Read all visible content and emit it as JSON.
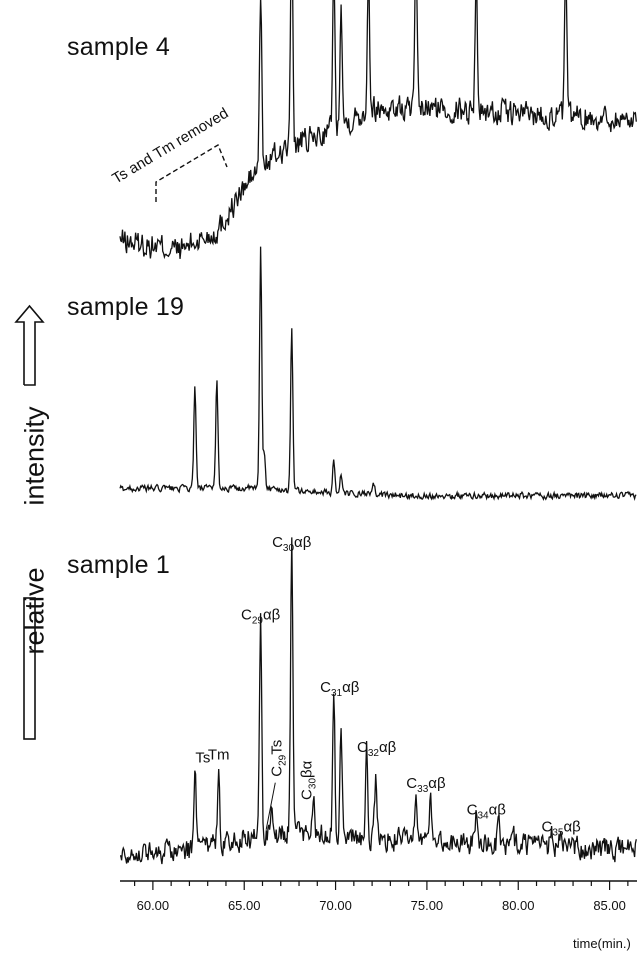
{
  "chart_data": {
    "type": "line",
    "xlabel": "time(min.)",
    "xlim": [
      58.2,
      86.5
    ],
    "xticks": [
      "60.00",
      "65.00",
      "70.00",
      "75.00",
      "80.00",
      "85.00"
    ],
    "ylabel_parts": [
      "relative",
      "intensity"
    ],
    "panels": [
      {
        "name": "sample 4",
        "annotation": "Ts and Tm removed",
        "baseline": [
          [
            58.2,
            0.04
          ],
          [
            61.5,
            0.0
          ],
          [
            63.5,
            0.08
          ],
          [
            65.5,
            0.32
          ],
          [
            67.0,
            0.42
          ],
          [
            69.0,
            0.48
          ],
          [
            72.0,
            0.6
          ],
          [
            75.0,
            0.6
          ],
          [
            80.0,
            0.58
          ],
          [
            86.5,
            0.55
          ]
        ],
        "peaks": [
          [
            65.9,
            0.75
          ],
          [
            67.6,
            1.0
          ],
          [
            69.9,
            0.7
          ],
          [
            70.3,
            0.55
          ],
          [
            71.8,
            0.62
          ],
          [
            74.4,
            0.62
          ],
          [
            77.7,
            0.6
          ],
          [
            82.6,
            0.6
          ]
        ],
        "noise": 0.05
      },
      {
        "name": "sample 19",
        "baseline": [
          [
            58.2,
            0.04
          ],
          [
            62.0,
            0.04
          ],
          [
            66.0,
            0.04
          ],
          [
            70.0,
            0.02
          ],
          [
            74.0,
            0.01
          ],
          [
            86.5,
            0.01
          ]
        ],
        "peaks": [
          [
            62.3,
            0.42
          ],
          [
            63.5,
            0.46
          ],
          [
            65.9,
            1.0
          ],
          [
            66.1,
            0.15
          ],
          [
            67.6,
            0.68
          ],
          [
            69.9,
            0.14
          ],
          [
            70.3,
            0.07
          ],
          [
            72.1,
            0.04
          ]
        ],
        "noise": 0.012
      },
      {
        "name": "sample 1",
        "baseline": [
          [
            58.2,
            0.04
          ],
          [
            62.0,
            0.05
          ],
          [
            66.0,
            0.1
          ],
          [
            68.0,
            0.11
          ],
          [
            72.0,
            0.09
          ],
          [
            78.0,
            0.07
          ],
          [
            86.5,
            0.05
          ]
        ],
        "peaks": [
          [
            62.3,
            0.28
          ],
          [
            63.6,
            0.29
          ],
          [
            65.9,
            0.74
          ],
          [
            66.5,
            0.13
          ],
          [
            67.6,
            1.0
          ],
          [
            68.8,
            0.16
          ],
          [
            69.9,
            0.5
          ],
          [
            70.3,
            0.41
          ],
          [
            71.7,
            0.31
          ],
          [
            72.2,
            0.2
          ],
          [
            74.4,
            0.2
          ],
          [
            75.2,
            0.18
          ],
          [
            77.7,
            0.11
          ],
          [
            78.9,
            0.08
          ],
          [
            79.7,
            0.06
          ],
          [
            81.8,
            0.06
          ],
          [
            82.3,
            0.05
          ]
        ],
        "noise": 0.035,
        "peak_labels": [
          {
            "label": "Ts",
            "x": 62.3
          },
          {
            "label": "Tm",
            "x": 63.6
          },
          {
            "label": "C29αβ",
            "x": 65.9
          },
          {
            "label": "C29Ts",
            "x": 66.5
          },
          {
            "label": "C30αβ",
            "x": 67.6
          },
          {
            "label": "C30βα",
            "x": 68.8
          },
          {
            "label": "C31αβ",
            "x": 69.9
          },
          {
            "label": "C32αβ",
            "x": 71.7
          },
          {
            "label": "C33αβ",
            "x": 74.4
          },
          {
            "label": "C34αβ",
            "x": 77.7
          },
          {
            "label": "C35αβ",
            "x": 81.8
          }
        ]
      }
    ]
  },
  "text": {
    "sample4_title": "sample 4",
    "sample19_title": "sample 19",
    "sample1_title": "sample 1",
    "relative": "relative",
    "intensity": "intensity",
    "time_label": "time(min.)",
    "annotation": "Ts and Tm removed"
  }
}
